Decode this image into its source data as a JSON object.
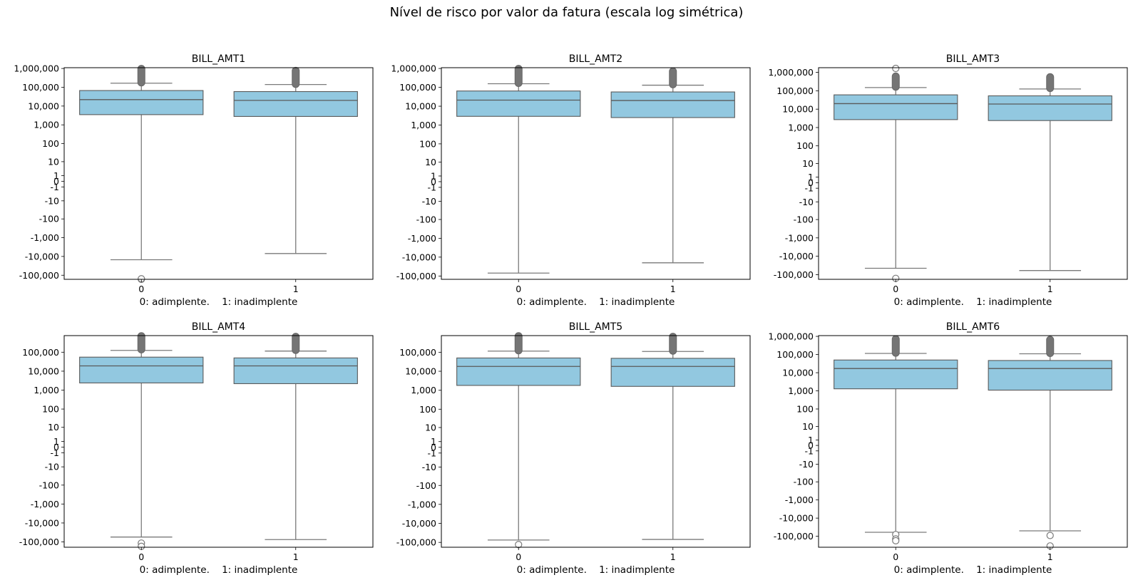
{
  "title": "Nível de risco por valor da fatura (escala log simétrica)",
  "colors": {
    "box_fill": "#92c8e0",
    "line": "#7a7a7a",
    "outlier_fill": "#757575"
  },
  "chart_data": [
    {
      "type": "box",
      "title": "BILL_AMT1",
      "xlabel": "0: adimplente.    1: inadimplente",
      "categories": [
        "0",
        "1"
      ],
      "yscale": "symlog",
      "ylim": [
        -165000,
        1100000
      ],
      "yticks": [
        "-100,000",
        "-10,000",
        "-1,000",
        "-100",
        "-10",
        "-1",
        "0",
        "1",
        "10",
        "100",
        "1,000",
        "10,000",
        "100,000",
        "1,000,000"
      ],
      "boxes": [
        {
          "category": "0",
          "whisker_low": -15000,
          "q1": 3500,
          "median": 22000,
          "q3": 67000,
          "whisker_high": 165000,
          "outliers_low": [
            -165000,
            -155000
          ],
          "outliers_high": [
            180000,
            950000
          ]
        },
        {
          "category": "1",
          "whisker_low": -7000,
          "q1": 2800,
          "median": 20000,
          "q3": 59000,
          "whisker_high": 140000,
          "outliers_low": [],
          "outliers_high": [
            150000,
            750000
          ]
        }
      ]
    },
    {
      "type": "box",
      "title": "BILL_AMT2",
      "xlabel": "0: adimplente.    1: inadimplente",
      "categories": [
        "0",
        "1"
      ],
      "yscale": "symlog",
      "ylim": [
        -150000,
        1100000
      ],
      "yticks": [
        "-100,000",
        "-10,000",
        "-1,000",
        "-100",
        "-10",
        "-1",
        "0",
        "1",
        "10",
        "100",
        "1,000",
        "10,000",
        "100,000",
        "1,000,000"
      ],
      "boxes": [
        {
          "category": "0",
          "whisker_low": -70000,
          "q1": 2900,
          "median": 21000,
          "q3": 64000,
          "whisker_high": 155000,
          "outliers_low": [],
          "outliers_high": [
            170000,
            950000
          ]
        },
        {
          "category": "1",
          "whisker_low": -20000,
          "q1": 2500,
          "median": 20000,
          "q3": 57000,
          "whisker_high": 130000,
          "outliers_low": [],
          "outliers_high": [
            145000,
            700000
          ]
        }
      ]
    },
    {
      "type": "box",
      "title": "BILL_AMT3",
      "xlabel": "0: adimplente.    1: inadimplente",
      "categories": [
        "0",
        "1"
      ],
      "yscale": "symlog",
      "ylim": [
        -180000,
        1800000
      ],
      "yticks": [
        "-100,000",
        "-10,000",
        "-1,000",
        "-100",
        "-10",
        "-1",
        "0",
        "1",
        "10",
        "100",
        "1,000",
        "10,000",
        "100,000",
        "1,000,000"
      ],
      "boxes": [
        {
          "category": "0",
          "whisker_low": -45000,
          "q1": 2700,
          "median": 20000,
          "q3": 60000,
          "whisker_high": 150000,
          "outliers_low": [
            -160000
          ],
          "outliers_high": [
            165000,
            600000,
            1650000
          ]
        },
        {
          "category": "1",
          "whisker_low": -60000,
          "q1": 2400,
          "median": 19000,
          "q3": 53000,
          "whisker_high": 125000,
          "outliers_low": [],
          "outliers_high": [
            140000,
            550000
          ]
        }
      ]
    },
    {
      "type": "box",
      "title": "BILL_AMT4",
      "xlabel": "0: adimplente.    1: inadimplente",
      "categories": [
        "0",
        "1"
      ],
      "yscale": "symlog",
      "ylim": [
        -190000,
        750000
      ],
      "yticks": [
        "-100,000",
        "-10,000",
        "-1,000",
        "-100",
        "-10",
        "-1",
        "0",
        "1",
        "10",
        "100",
        "1,000",
        "10,000",
        "100,000"
      ],
      "boxes": [
        {
          "category": "0",
          "whisker_low": -55000,
          "q1": 2400,
          "median": 19000,
          "q3": 55000,
          "whisker_high": 125000,
          "outliers_low": [
            -115000,
            -170000
          ],
          "outliers_high": [
            140000,
            700000
          ]
        },
        {
          "category": "1",
          "whisker_low": -75000,
          "q1": 2200,
          "median": 19000,
          "q3": 50000,
          "whisker_high": 115000,
          "outliers_low": [],
          "outliers_high": [
            130000,
            650000
          ]
        }
      ]
    },
    {
      "type": "box",
      "title": "BILL_AMT5",
      "xlabel": "0: adimplente.    1: inadimplente",
      "categories": [
        "0",
        "1"
      ],
      "yscale": "symlog",
      "ylim": [
        -180000,
        750000
      ],
      "yticks": [
        "-100,000",
        "-10,000",
        "-1,000",
        "-100",
        "-10",
        "-1",
        "0",
        "1",
        "10",
        "100",
        "1,000",
        "10,000",
        "100,000"
      ],
      "boxes": [
        {
          "category": "0",
          "whisker_low": -75000,
          "q1": 1800,
          "median": 18000,
          "q3": 50000,
          "whisker_high": 115000,
          "outliers_low": [
            -130000
          ],
          "outliers_high": [
            125000,
            700000
          ]
        },
        {
          "category": "1",
          "whisker_low": -70000,
          "q1": 1600,
          "median": 18000,
          "q3": 48000,
          "whisker_high": 110000,
          "outliers_low": [],
          "outliers_high": [
            120000,
            650000
          ]
        }
      ]
    },
    {
      "type": "box",
      "title": "BILL_AMT6",
      "xlabel": "0: adimplente.    1: inadimplente",
      "categories": [
        "0",
        "1"
      ],
      "yscale": "symlog",
      "ylim": [
        -400000,
        1100000
      ],
      "yticks": [
        "-100,000",
        "-10,000",
        "-1,000",
        "-100",
        "-10",
        "-1",
        "0",
        "1",
        "10",
        "100",
        "1,000",
        "10,000",
        "100,000",
        "1,000,000"
      ],
      "boxes": [
        {
          "category": "0",
          "whisker_low": -60000,
          "q1": 1300,
          "median": 17000,
          "q3": 50000,
          "whisker_high": 115000,
          "outliers_low": [
            -80000,
            -140000,
            -175000
          ],
          "outliers_high": [
            125000,
            700000
          ]
        },
        {
          "category": "1",
          "whisker_low": -50000,
          "q1": 1100,
          "median": 17000,
          "q3": 47000,
          "whisker_high": 110000,
          "outliers_low": [
            -90000,
            -340000
          ],
          "outliers_high": [
            120000,
            650000
          ]
        }
      ]
    }
  ]
}
